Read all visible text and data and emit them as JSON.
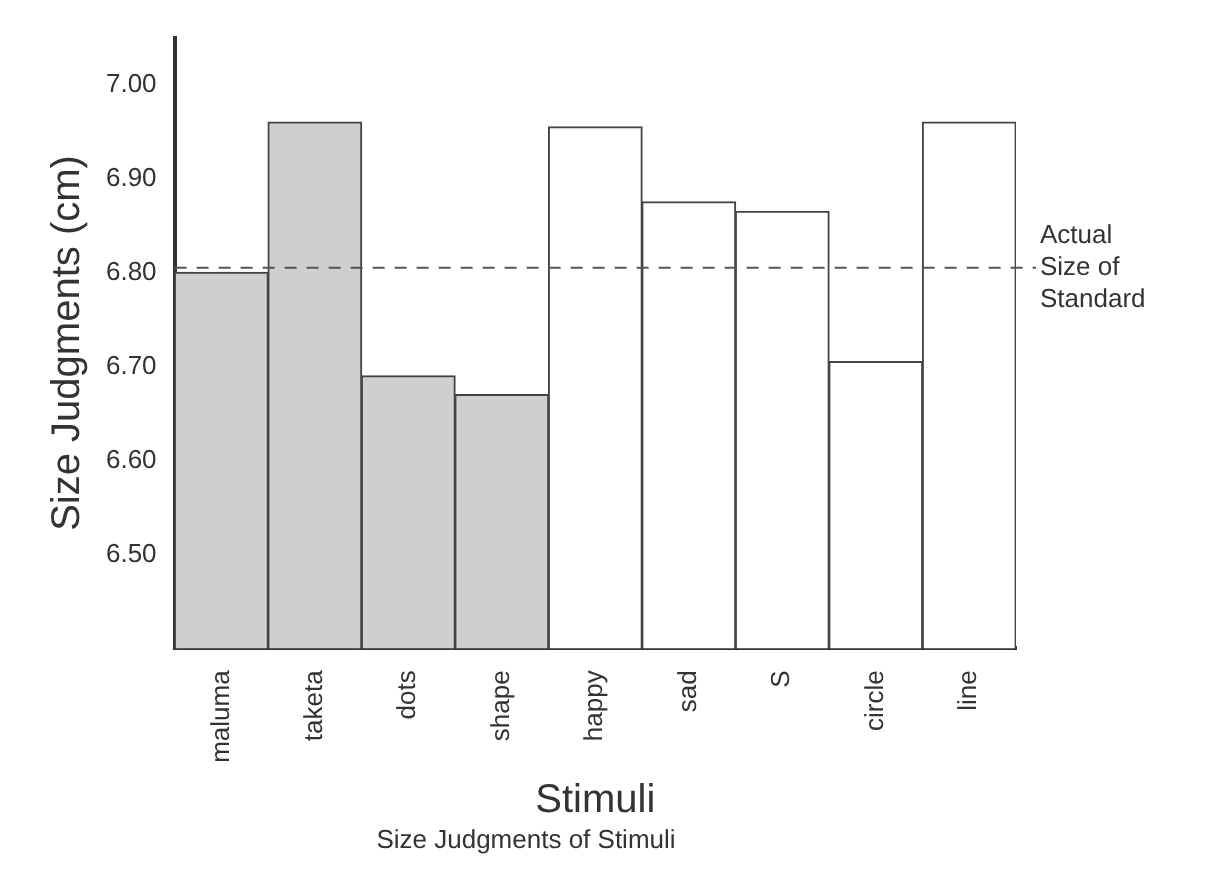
{
  "chart_data": {
    "type": "bar",
    "ylabel": "Size Judgments (cm)",
    "xlabel": "Stimuli",
    "categories": [
      "maluma",
      "taketa",
      "dots",
      "shape",
      "happy",
      "sad",
      "S",
      "circle",
      "line"
    ],
    "values": [
      6.8,
      6.96,
      6.69,
      6.67,
      6.955,
      6.875,
      6.865,
      6.705,
      6.96
    ],
    "colors": [
      "#cfcfcf",
      "#cfcfcf",
      "#cfcfcf",
      "#cfcfcf",
      "#ffffff",
      "#ffffff",
      "#ffffff",
      "#ffffff",
      "#ffffff"
    ],
    "ylim": [
      6.4,
      7.05
    ],
    "yticks": [
      {
        "value": 6.5,
        "label": "6.50"
      },
      {
        "value": 6.6,
        "label": "6.60"
      },
      {
        "value": 6.7,
        "label": "6.70"
      },
      {
        "value": 6.8,
        "label": "6.80"
      },
      {
        "value": 6.9,
        "label": "6.90"
      },
      {
        "value": 7.0,
        "label": "7.00"
      }
    ],
    "grid": false,
    "legend": false,
    "ref_lines": [
      {
        "axis": "y",
        "value": 6.805,
        "label": "Actual Size of Standard",
        "line_style": "dashed",
        "color": "#555555"
      }
    ],
    "annotations": [
      "Size Judgments of Stimuli"
    ]
  }
}
